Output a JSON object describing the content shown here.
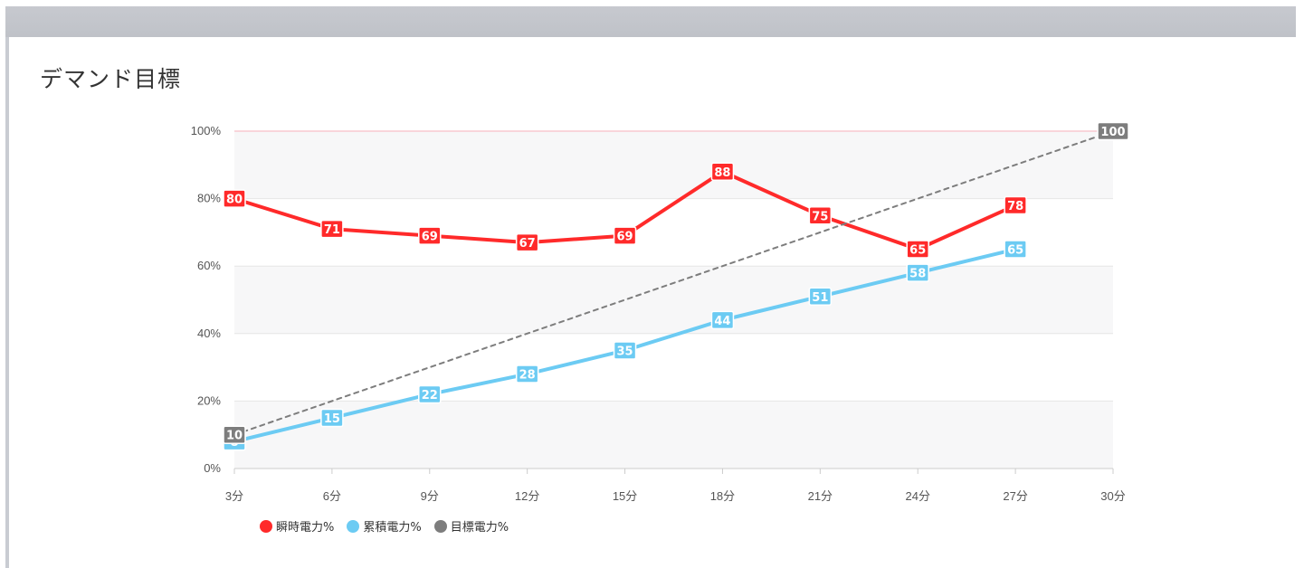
{
  "page": {
    "title": "デマンド目標"
  },
  "colors": {
    "instant": "#ff2a2a",
    "cumulative": "#6ccbf3",
    "target": "#7d7d7d",
    "limit_line": "#f8c8cf",
    "band": "#f7f7f8",
    "grid": "#e6e6e6"
  },
  "chart_data": {
    "type": "line",
    "categories": [
      "3分",
      "6分",
      "9分",
      "12分",
      "15分",
      "18分",
      "21分",
      "24分",
      "27分",
      "30分"
    ],
    "y_ticks": [
      "0%",
      "20%",
      "40%",
      "60%",
      "80%",
      "100%"
    ],
    "ylim": [
      0,
      100
    ],
    "series": [
      {
        "name": "瞬時電力%",
        "key": "instant",
        "values": [
          80,
          71,
          69,
          67,
          69,
          88,
          75,
          65,
          78,
          null
        ]
      },
      {
        "name": "累積電力%",
        "key": "cumulative",
        "values": [
          8,
          15,
          22,
          28,
          35,
          44,
          51,
          58,
          65,
          null
        ]
      },
      {
        "name": "目標電力%",
        "key": "target",
        "values": [
          10,
          null,
          null,
          null,
          null,
          null,
          null,
          null,
          null,
          100
        ],
        "dashed": true,
        "labels_only_endpoints": true
      }
    ],
    "legend_position": "bottom-left"
  }
}
